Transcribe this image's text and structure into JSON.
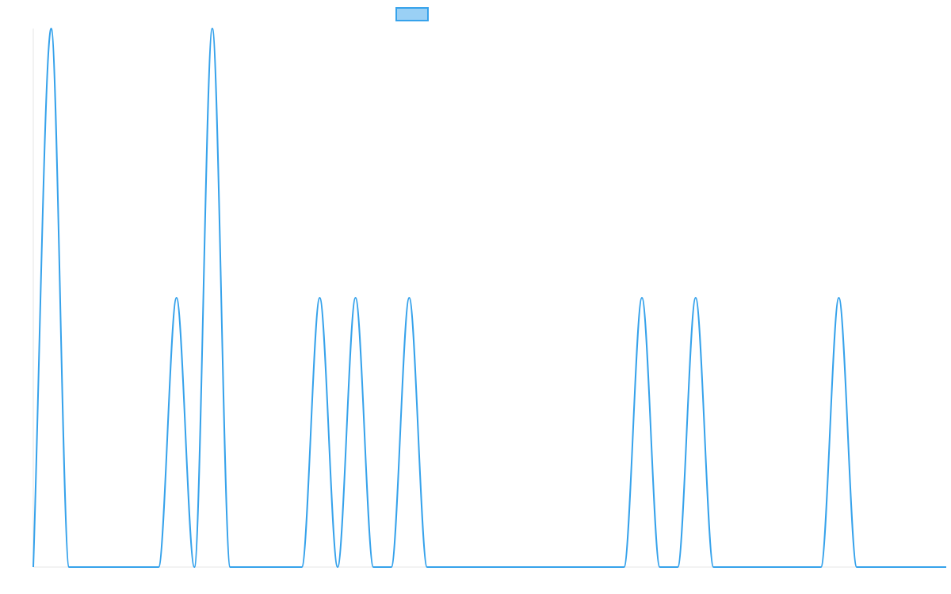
{
  "chart_data": {
    "type": "line",
    "title": "",
    "xlabel": "",
    "ylabel": "",
    "legend": {
      "position": "top-center",
      "entries": [
        {
          "label": "",
          "color": "#36A2EB",
          "fill": "#9AD0F5"
        }
      ]
    },
    "grid": false,
    "xlim": [
      0,
      51
    ],
    "ylim": [
      0,
      1
    ],
    "series": [
      {
        "color": "#36A2EB",
        "x": [
          0,
          1,
          2,
          3,
          4,
          5,
          6,
          7,
          8,
          9,
          10,
          11,
          12,
          13,
          14,
          15,
          16,
          17,
          18,
          19,
          20,
          21,
          22,
          23,
          24,
          25,
          26,
          27,
          28,
          29,
          30,
          31,
          32,
          33,
          34,
          35,
          36,
          37,
          38,
          39,
          40,
          41,
          42,
          43,
          44,
          45,
          46,
          47,
          48,
          49,
          50,
          51
        ],
        "y": [
          0,
          1,
          0,
          0,
          0,
          0,
          0,
          0,
          0.5,
          0,
          1,
          0,
          0,
          0,
          0,
          0,
          0.5,
          0,
          0.5,
          0,
          0,
          0.5,
          0,
          0,
          0,
          0,
          0,
          0,
          0,
          0,
          0,
          0,
          0,
          0,
          0.5,
          0,
          0,
          0.5,
          0,
          0,
          0,
          0,
          0,
          0,
          0,
          0.5,
          0,
          0,
          0,
          0,
          0,
          0
        ]
      }
    ]
  }
}
